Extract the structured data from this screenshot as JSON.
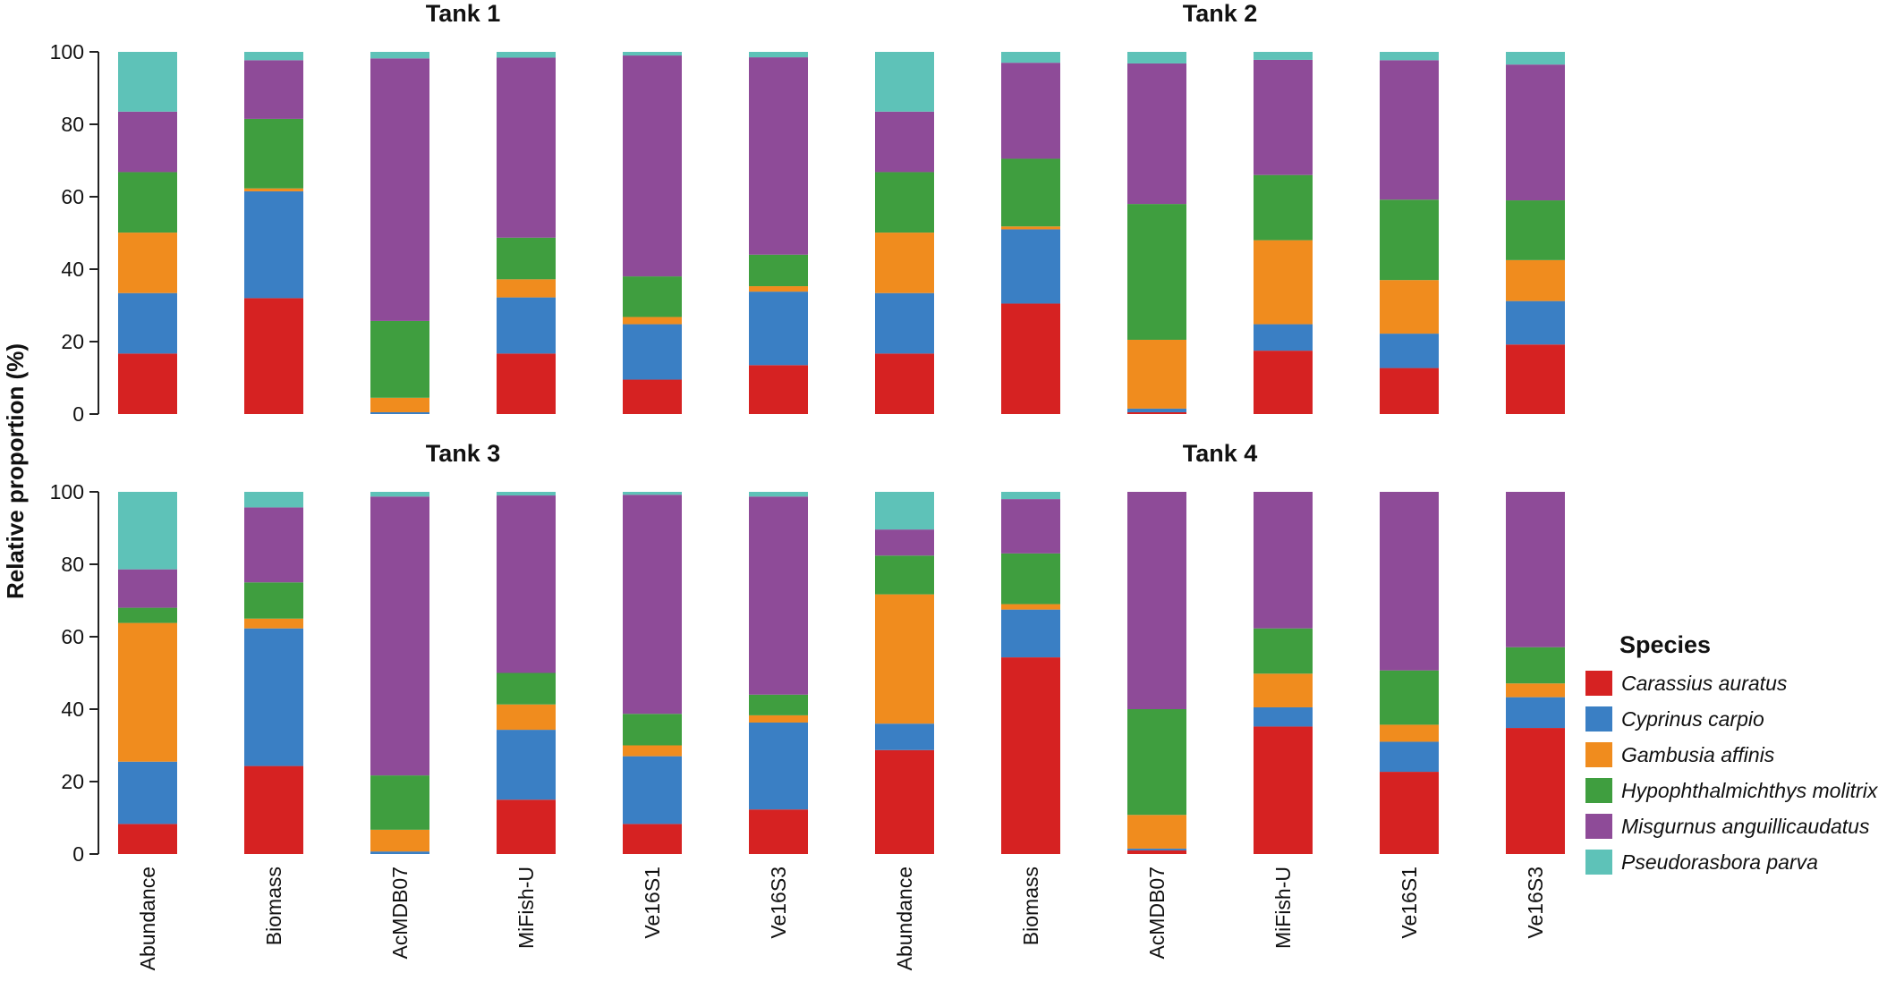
{
  "chart_data": {
    "type": "stacked-bar",
    "ylabel": "Relative proportion (%)",
    "ylim": [
      0,
      100
    ],
    "yticks": [
      0,
      20,
      40,
      60,
      80,
      100
    ],
    "categories": [
      "Abundance",
      "Biomass",
      "AcMDB07",
      "MiFish-U",
      "Ve16S1",
      "Ve16S3"
    ],
    "legend": {
      "title": "Species",
      "position": "right",
      "items": [
        {
          "name": "Carassius auratus",
          "color": "#d62222"
        },
        {
          "name": "Cyprinus carpio",
          "color": "#3a7fc4"
        },
        {
          "name": "Gambusia affinis",
          "color": "#f08c1e"
        },
        {
          "name": "Hypophthalmichthys molitrix",
          "color": "#3f9e3f"
        },
        {
          "name": "Misgurnus anguillicaudatus",
          "color": "#8e4b98"
        },
        {
          "name": "Pseudorasbora parva",
          "color": "#5ec2b8"
        }
      ]
    },
    "panels": [
      {
        "title": "Tank 1",
        "values": [
          [
            16.7,
            16.7,
            16.7,
            16.7,
            16.7,
            16.5
          ],
          [
            32,
            29.5,
            0.8,
            19.2,
            16.2,
            2.3
          ],
          [
            0,
            0.5,
            4,
            21.2,
            72.5,
            1.8
          ],
          [
            16.7,
            15.5,
            5,
            11.5,
            49.7,
            1.6
          ],
          [
            9.5,
            15.3,
            2,
            11.2,
            61,
            1
          ],
          [
            13.5,
            20.3,
            1.5,
            8.7,
            54.5,
            1.5
          ]
        ]
      },
      {
        "title": "Tank 2",
        "values": [
          [
            16.7,
            16.7,
            16.7,
            16.7,
            16.7,
            16.5
          ],
          [
            30.5,
            20.5,
            0.8,
            18.7,
            26.5,
            3
          ],
          [
            0.5,
            1,
            19,
            37.5,
            38.8,
            3.2
          ],
          [
            17.5,
            7.3,
            23.2,
            18,
            31.8,
            2.2
          ],
          [
            12.7,
            9.5,
            14.8,
            22.2,
            38.5,
            2.3
          ],
          [
            19.2,
            12,
            11.3,
            16.5,
            37.5,
            3.5
          ]
        ]
      },
      {
        "title": "Tank 3",
        "values": [
          [
            8.3,
            17.2,
            38.3,
            4.2,
            10.6,
            21.4
          ],
          [
            24.3,
            38,
            2.7,
            10,
            20.7,
            4.3
          ],
          [
            0,
            0.7,
            6,
            15,
            77,
            1.3
          ],
          [
            15,
            19.3,
            7,
            8.7,
            49,
            1
          ],
          [
            8.3,
            18.7,
            3,
            8.7,
            60.5,
            0.8
          ],
          [
            12.3,
            24,
            2,
            5.7,
            54.7,
            1.3
          ]
        ]
      },
      {
        "title": "Tank 4",
        "values": [
          [
            28.7,
            7.3,
            35.7,
            10.7,
            7.2,
            10.4
          ],
          [
            54.3,
            13.2,
            1.5,
            14,
            15,
            2
          ],
          [
            1,
            0.5,
            9.3,
            29.2,
            60,
            0
          ],
          [
            35.2,
            5.3,
            9.3,
            12.5,
            37.7,
            0
          ],
          [
            22.7,
            8.3,
            4.7,
            15,
            49.3,
            0
          ],
          [
            34.8,
            8.5,
            3.8,
            10,
            42.9,
            0
          ]
        ]
      }
    ]
  }
}
